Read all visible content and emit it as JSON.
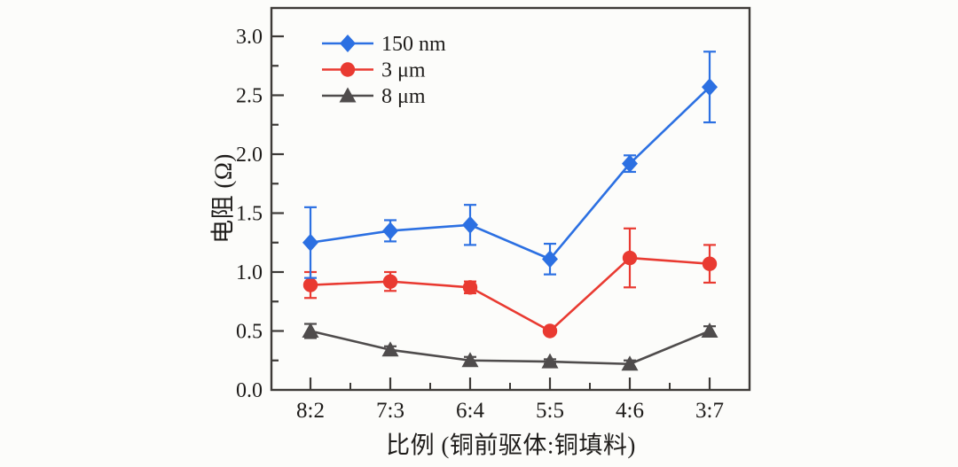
{
  "page": {
    "background": "#fcfcfa",
    "text_color": "#1e1c1a",
    "axis_color": "#3d3a37"
  },
  "chart_data": {
    "type": "line",
    "title": "",
    "xlabel": "比例 (铜前驱体:铜填料)",
    "ylabel": "电阻 (Ω)",
    "categories": [
      "8:2",
      "7:3",
      "6:4",
      "5:5",
      "4:6",
      "3:7"
    ],
    "y_ticks": [
      "0.0",
      "0.5",
      "1.0",
      "1.5",
      "2.0",
      "2.5",
      "3.0"
    ],
    "ylim": [
      0,
      3.25
    ],
    "y_major_step": 0.5,
    "y_minor_step": 0.25,
    "grid": false,
    "error_bars": true,
    "legend_position": "top-left-inside",
    "series": [
      {
        "name": "8 μm",
        "marker": "triangle",
        "color": "#4f4c4c",
        "values": [
          0.5,
          0.34,
          0.25,
          0.24,
          0.22,
          0.5
        ],
        "errors": [
          0.06,
          0.03,
          0.03,
          0.02,
          0.03,
          0.04
        ]
      },
      {
        "name": "3 μm",
        "marker": "circle",
        "color": "#e93a31",
        "values": [
          0.89,
          0.92,
          0.87,
          0.5,
          1.12,
          1.07
        ],
        "errors": [
          0.11,
          0.08,
          0.05,
          0.02,
          0.25,
          0.16
        ]
      },
      {
        "name": "150 nm",
        "marker": "diamond",
        "color": "#2c70e2",
        "values": [
          1.25,
          1.35,
          1.4,
          1.11,
          1.92,
          2.57
        ],
        "errors": [
          0.3,
          0.09,
          0.17,
          0.13,
          0.07,
          0.3
        ]
      }
    ]
  }
}
